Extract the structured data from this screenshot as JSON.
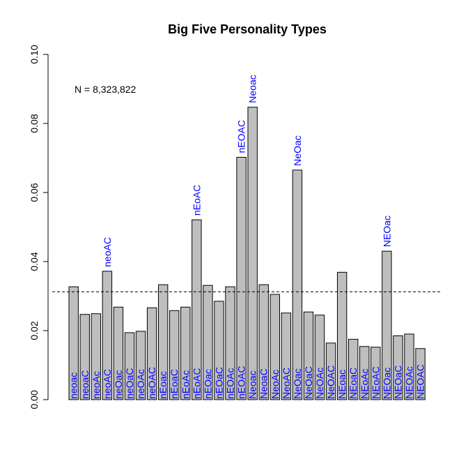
{
  "chart_data": {
    "type": "bar",
    "title": "Big Five Personality Types",
    "xlabel": "",
    "ylabel": "",
    "ylim": [
      0,
      0.1
    ],
    "yticks": [
      "0.00",
      "0.02",
      "0.04",
      "0.06",
      "0.08",
      "0.10"
    ],
    "categories": [
      "neoac",
      "neoaC",
      "neoAc",
      "neoAC",
      "neOac",
      "neOaC",
      "neOAc",
      "neOAC",
      "nEoac",
      "nEoaC",
      "nEoAc",
      "nEoAC",
      "nEOac",
      "nEOaC",
      "nEOAc",
      "nEOAC",
      "Neoac",
      "NeoaC",
      "NeoAc",
      "NeoAC",
      "NeOac",
      "NeOaC",
      "NeOAc",
      "NeOAC",
      "NEoac",
      "NEoaC",
      "NEoAc",
      "NEoAC",
      "NEOac",
      "NEOaC",
      "NEOAc",
      "NEOAC"
    ],
    "values": [
      0.0327,
      0.0247,
      0.0249,
      0.0372,
      0.0268,
      0.0194,
      0.0198,
      0.0266,
      0.0333,
      0.0258,
      0.0268,
      0.0521,
      0.0331,
      0.0285,
      0.0327,
      0.0702,
      0.0847,
      0.0333,
      0.0305,
      0.0251,
      0.0665,
      0.0254,
      0.0245,
      0.0164,
      0.0369,
      0.0175,
      0.0154,
      0.0152,
      0.043,
      0.0185,
      0.019,
      0.0148
    ],
    "top_labels": [
      {
        "index": 3,
        "text": "neoAC"
      },
      {
        "index": 11,
        "text": "nEoAC"
      },
      {
        "index": 15,
        "text": "nEOAC"
      },
      {
        "index": 16,
        "text": "Neoac"
      },
      {
        "index": 20,
        "text": "NeOac"
      },
      {
        "index": 28,
        "text": "NEOac"
      }
    ],
    "reference_line": {
      "value": 0.03125,
      "style": "dashed"
    },
    "annotation": "N = 8,323,822",
    "grid": false,
    "legend": "none",
    "colors": {
      "bar_fill": "#bebebe",
      "bar_stroke": "#000000",
      "label_text": "#0000ff",
      "reference_line": "#000000"
    }
  }
}
